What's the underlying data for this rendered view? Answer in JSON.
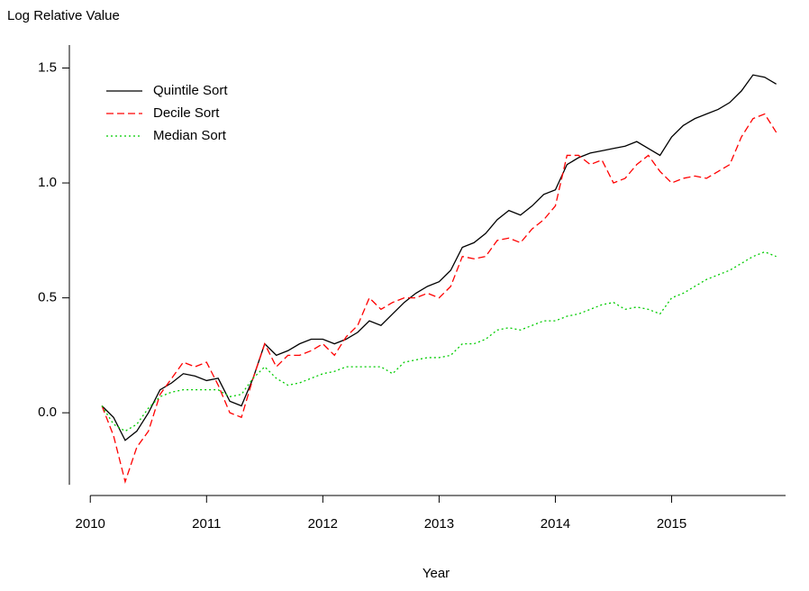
{
  "chart_data": {
    "type": "line",
    "ylabel": "Log Relative Value",
    "xlabel": "Year",
    "x": [
      2010.1,
      2010.2,
      2010.3,
      2010.4,
      2010.5,
      2010.6,
      2010.7,
      2010.8,
      2010.9,
      2011.0,
      2011.1,
      2011.2,
      2011.3,
      2011.4,
      2011.5,
      2011.6,
      2011.7,
      2011.8,
      2011.9,
      2012.0,
      2012.1,
      2012.2,
      2012.3,
      2012.4,
      2012.5,
      2012.6,
      2012.7,
      2012.8,
      2012.9,
      2013.0,
      2013.1,
      2013.2,
      2013.3,
      2013.4,
      2013.5,
      2013.6,
      2013.7,
      2013.8,
      2013.9,
      2014.0,
      2014.1,
      2014.2,
      2014.3,
      2014.4,
      2014.5,
      2014.6,
      2014.7,
      2014.8,
      2014.9,
      2015.0,
      2015.1,
      2015.2,
      2015.3,
      2015.4,
      2015.5,
      2015.6,
      2015.7,
      2015.8,
      2015.9
    ],
    "series": [
      {
        "name": "Quintile Sort",
        "color": "#000000",
        "linestyle": "solid",
        "values": [
          0.03,
          -0.02,
          -0.12,
          -0.08,
          0.0,
          0.1,
          0.13,
          0.17,
          0.16,
          0.14,
          0.15,
          0.05,
          0.03,
          0.15,
          0.3,
          0.25,
          0.27,
          0.3,
          0.32,
          0.32,
          0.3,
          0.32,
          0.35,
          0.4,
          0.38,
          0.43,
          0.48,
          0.52,
          0.55,
          0.57,
          0.62,
          0.72,
          0.74,
          0.78,
          0.84,
          0.88,
          0.86,
          0.9,
          0.95,
          0.97,
          1.08,
          1.11,
          1.13,
          1.14,
          1.15,
          1.16,
          1.18,
          1.15,
          1.12,
          1.2,
          1.25,
          1.28,
          1.3,
          1.32,
          1.35,
          1.4,
          1.47,
          1.46,
          1.43
        ]
      },
      {
        "name": "Decile Sort",
        "color": "#ff0000",
        "linestyle": "dashed",
        "values": [
          0.03,
          -0.1,
          -0.3,
          -0.15,
          -0.08,
          0.08,
          0.15,
          0.22,
          0.2,
          0.22,
          0.12,
          0.0,
          -0.02,
          0.15,
          0.3,
          0.2,
          0.25,
          0.25,
          0.27,
          0.3,
          0.25,
          0.33,
          0.38,
          0.5,
          0.45,
          0.48,
          0.5,
          0.5,
          0.52,
          0.5,
          0.55,
          0.68,
          0.67,
          0.68,
          0.75,
          0.76,
          0.74,
          0.8,
          0.84,
          0.9,
          1.12,
          1.12,
          1.08,
          1.1,
          1.0,
          1.02,
          1.08,
          1.12,
          1.05,
          1.0,
          1.02,
          1.03,
          1.02,
          1.05,
          1.08,
          1.2,
          1.28,
          1.3,
          1.22
        ]
      },
      {
        "name": "Median Sort",
        "color": "#00cc00",
        "linestyle": "dotted",
        "values": [
          0.03,
          -0.05,
          -0.08,
          -0.05,
          0.02,
          0.07,
          0.09,
          0.1,
          0.1,
          0.1,
          0.1,
          0.07,
          0.08,
          0.15,
          0.2,
          0.15,
          0.12,
          0.13,
          0.15,
          0.17,
          0.18,
          0.2,
          0.2,
          0.2,
          0.2,
          0.17,
          0.22,
          0.23,
          0.24,
          0.24,
          0.25,
          0.3,
          0.3,
          0.32,
          0.36,
          0.37,
          0.36,
          0.38,
          0.4,
          0.4,
          0.42,
          0.43,
          0.45,
          0.47,
          0.48,
          0.45,
          0.46,
          0.45,
          0.43,
          0.5,
          0.52,
          0.55,
          0.58,
          0.6,
          0.62,
          0.65,
          0.68,
          0.7,
          0.68
        ]
      }
    ],
    "xlim": [
      2009.82,
      2015.98
    ],
    "ylim": [
      -0.36,
      1.6
    ],
    "xticks": [
      2010,
      2011,
      2012,
      2013,
      2014,
      2015
    ],
    "yticks": [
      {
        "value": 0,
        "label": "0.0"
      },
      0.5,
      {
        "value": 1,
        "label": "1.0"
      },
      1.5
    ],
    "legend": "upper left"
  }
}
